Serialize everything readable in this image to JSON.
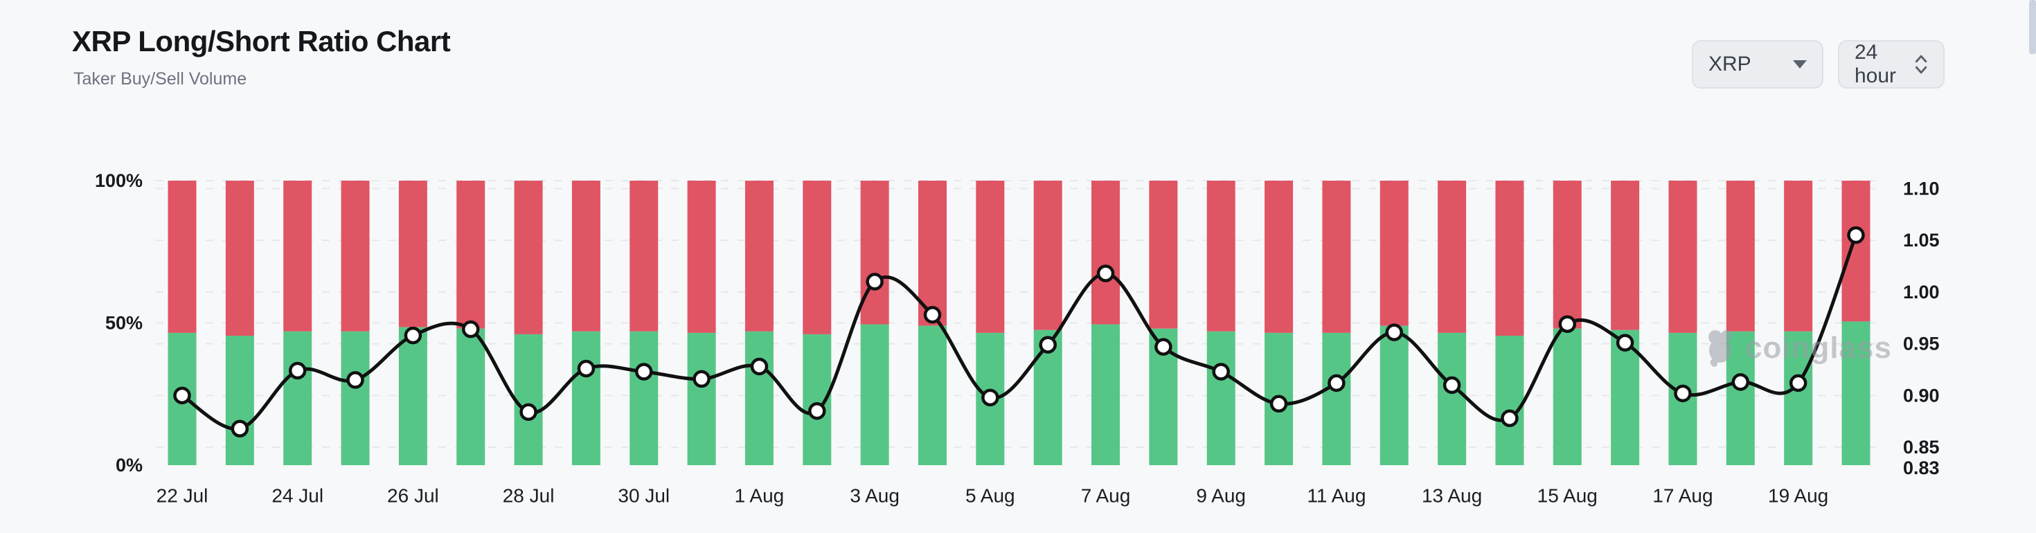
{
  "header": {
    "title": "XRP Long/Short Ratio Chart",
    "subtitle": "Taker Buy/Sell Volume"
  },
  "controls": {
    "symbol_select": {
      "value": "XRP"
    },
    "interval_select": {
      "value": "24 hour"
    }
  },
  "watermark": {
    "text": "coinglass"
  },
  "chart_data": {
    "type": "bar",
    "subtype": "stacked-percent-bars-with-ratio-line",
    "title": "XRP Long/Short Ratio Chart",
    "categories": [
      "22 Jul",
      "23 Jul",
      "24 Jul",
      "25 Jul",
      "26 Jul",
      "27 Jul",
      "28 Jul",
      "29 Jul",
      "30 Jul",
      "31 Jul",
      "1 Aug",
      "2 Aug",
      "3 Aug",
      "4 Aug",
      "5 Aug",
      "6 Aug",
      "7 Aug",
      "8 Aug",
      "9 Aug",
      "10 Aug",
      "11 Aug",
      "12 Aug",
      "13 Aug",
      "14 Aug",
      "15 Aug",
      "16 Aug",
      "17 Aug",
      "18 Aug",
      "19 Aug",
      "20 Aug"
    ],
    "x_tick_labels": [
      "22 Jul",
      "24 Jul",
      "26 Jul",
      "28 Jul",
      "30 Jul",
      "1 Aug",
      "3 Aug",
      "5 Aug",
      "7 Aug",
      "9 Aug",
      "11 Aug",
      "13 Aug",
      "15 Aug",
      "17 Aug",
      "19 Aug"
    ],
    "series": [
      {
        "name": "Taker Buy Volume %",
        "chart": "bar",
        "color": "#56c687",
        "values": [
          46.5,
          45.5,
          47,
          47,
          48.5,
          48,
          46,
          47,
          47,
          46.5,
          47,
          46,
          49.5,
          49,
          46.5,
          47.5,
          49.5,
          48,
          47,
          46.5,
          46.5,
          49,
          46.5,
          45.5,
          48,
          47.5,
          46.5,
          47,
          47,
          50.5
        ]
      },
      {
        "name": "Taker Sell Volume %",
        "chart": "bar",
        "color": "#e05564",
        "values": [
          53.5,
          54.5,
          53,
          53,
          51.5,
          52,
          54,
          53,
          53,
          53.5,
          53,
          54,
          50.5,
          51,
          53.5,
          52.5,
          50.5,
          52,
          53,
          53.5,
          53.5,
          51,
          53.5,
          54.5,
          52,
          52.5,
          53.5,
          53,
          53,
          49.5
        ]
      },
      {
        "name": "Long/Short Ratio",
        "chart": "line",
        "color": "#111111",
        "values": [
          0.9,
          0.868,
          0.924,
          0.915,
          0.958,
          0.964,
          0.884,
          0.926,
          0.923,
          0.916,
          0.928,
          0.885,
          1.01,
          0.978,
          0.898,
          0.949,
          1.018,
          0.947,
          0.923,
          0.892,
          0.912,
          0.961,
          0.91,
          0.878,
          0.969,
          0.951,
          0.902,
          0.913,
          0.912,
          1.055
        ]
      }
    ],
    "left_axis": {
      "labels": [
        "100%",
        "50%",
        "0%"
      ],
      "label_values": [
        100,
        50,
        0
      ],
      "range": [
        0,
        100
      ]
    },
    "right_axis": {
      "labels": [
        "1.10",
        "1.05",
        "1.00",
        "0.95",
        "0.90",
        "0.85",
        "0.83"
      ],
      "label_values": [
        1.1,
        1.05,
        1.0,
        0.95,
        0.9,
        0.85,
        0.83
      ],
      "grid_values": [
        1.1,
        1.05,
        1.0,
        0.95,
        0.9,
        0.85
      ],
      "range": [
        0.83,
        1.105
      ]
    },
    "grid": "faint dashed horizontal lines",
    "legend": "none"
  }
}
